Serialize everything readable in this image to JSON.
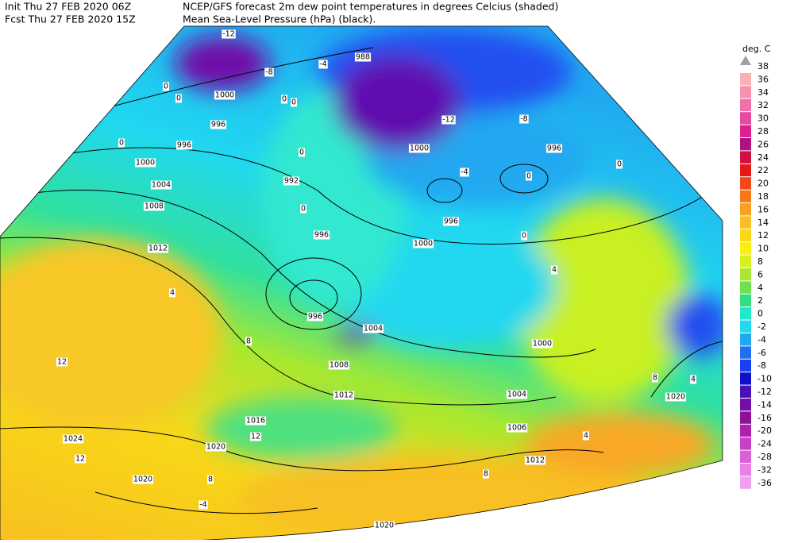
{
  "header": {
    "init": "Init  Thu 27 FEB 2020 06Z",
    "fcst": "Fcst Thu 27 FEB 2020 15Z",
    "title": "NCEP/GFS forecast 2m dew point temperatures in degrees Celcius (shaded)",
    "subtitle": "Mean Sea-Level Pressure (hPa) (black)."
  },
  "colorbar": {
    "title": "deg. C",
    "levels": [
      {
        "label": "38",
        "color": "#a0a0a0"
      },
      {
        "label": "36",
        "color": "#f8b4b4"
      },
      {
        "label": "34",
        "color": "#f890b0"
      },
      {
        "label": "32",
        "color": "#f070a8"
      },
      {
        "label": "30",
        "color": "#e848a0"
      },
      {
        "label": "28",
        "color": "#e0208c"
      },
      {
        "label": "26",
        "color": "#b01080"
      },
      {
        "label": "24",
        "color": "#d01040"
      },
      {
        "label": "22",
        "color": "#e81818"
      },
      {
        "label": "20",
        "color": "#f04818"
      },
      {
        "label": "18",
        "color": "#f87818"
      },
      {
        "label": "16",
        "color": "#f8a020"
      },
      {
        "label": "14",
        "color": "#f8c020"
      },
      {
        "label": "12",
        "color": "#f8d818"
      },
      {
        "label": "10",
        "color": "#f8f010"
      },
      {
        "label": "8",
        "color": "#d8f020"
      },
      {
        "label": "6",
        "color": "#a8e830"
      },
      {
        "label": "4",
        "color": "#70e050"
      },
      {
        "label": "2",
        "color": "#30e080"
      },
      {
        "label": "0",
        "color": "#20e8c8"
      },
      {
        "label": "-2",
        "color": "#20d8f0"
      },
      {
        "label": "-4",
        "color": "#20a8f0"
      },
      {
        "label": "-6",
        "color": "#2070f0"
      },
      {
        "label": "-8",
        "color": "#1840f0"
      },
      {
        "label": "-10",
        "color": "#1010c8"
      },
      {
        "label": "-12",
        "color": "#4810b8"
      },
      {
        "label": "-14",
        "color": "#7010a8"
      },
      {
        "label": "-16",
        "color": "#901098"
      },
      {
        "label": "-20",
        "color": "#b020b0"
      },
      {
        "label": "-24",
        "color": "#c840c8"
      },
      {
        "label": "-28",
        "color": "#d860d8"
      },
      {
        "label": "-32",
        "color": "#e880e8"
      },
      {
        "label": "-36",
        "color": "#f0a0f0"
      }
    ]
  },
  "isobar_labels": [
    "988",
    "1000",
    "996",
    "996",
    "1000",
    "1004",
    "1008",
    "1012",
    "992",
    "996",
    "996",
    "1000",
    "1000",
    "996",
    "996",
    "1004",
    "1008",
    "1012",
    "1016",
    "1020",
    "1024",
    "1020",
    "1020",
    "1012",
    "1004",
    "1006",
    "1000",
    "1020"
  ],
  "dewpoint_labels": [
    "-12",
    "-4",
    "-8",
    "0",
    "0",
    "0",
    "0",
    "0",
    "0",
    "0",
    "-12",
    "-8",
    "-4",
    "0",
    "0",
    "0",
    "4",
    "4",
    "8",
    "12",
    "12",
    "12",
    "8",
    "-4",
    "8",
    "4",
    "8",
    "4"
  ]
}
